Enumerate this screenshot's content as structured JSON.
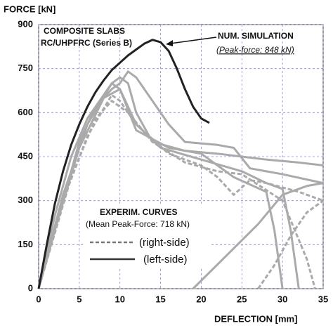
{
  "chart_data": {
    "type": "line",
    "y_label": "FORCE [kN]",
    "x_label": "DEFLECTION [mm]",
    "xlim": [
      0,
      35
    ],
    "xticks": [
      0,
      5,
      10,
      15,
      20,
      25,
      30,
      35
    ],
    "ylim": [
      0,
      900
    ],
    "yticks": [
      0,
      150,
      300,
      450,
      600,
      750,
      900
    ],
    "grid": true,
    "annotations": [
      "COMPOSITE SLABS",
      "RC/UHPFRC (Series B)",
      "NUM. SIMULATION",
      "(Peak-force: 848 kN)",
      "EXPERIM. CURVES",
      "(Mean Peak-Force: 718 kN)"
    ],
    "legend": [
      "(right-side)",
      "(left-side)"
    ],
    "series": [
      {
        "color": "#aaaaaa",
        "dashed": false,
        "x": [
          0,
          2,
          4,
          6,
          8,
          9,
          10,
          11,
          12,
          14,
          18,
          22,
          25,
          28,
          32,
          35
        ],
        "values": [
          0,
          250,
          450,
          580,
          660,
          700,
          720,
          700,
          600,
          500,
          470,
          460,
          450,
          440,
          430,
          420
        ]
      },
      {
        "color": "#aaaaaa",
        "dashed": false,
        "x": [
          0,
          3,
          5,
          7,
          9,
          10,
          11,
          12,
          14,
          16,
          18,
          22,
          24,
          26,
          30,
          35
        ],
        "values": [
          0,
          300,
          500,
          620,
          680,
          700,
          740,
          720,
          640,
          560,
          500,
          490,
          480,
          410,
          390,
          360
        ]
      },
      {
        "color": "#aaaaaa",
        "dashed": false,
        "x": [
          0,
          3,
          6,
          9,
          10,
          12,
          15,
          20,
          25,
          28,
          30,
          31,
          32
        ],
        "values": [
          0,
          320,
          560,
          700,
          680,
          560,
          480,
          440,
          400,
          360,
          340,
          200,
          0
        ]
      },
      {
        "color": "#aaaaaa",
        "dashed": false,
        "x": [
          0,
          2,
          5,
          8,
          10,
          12,
          16,
          20,
          24,
          28,
          29,
          30
        ],
        "values": [
          0,
          200,
          480,
          650,
          680,
          540,
          480,
          460,
          380,
          330,
          200,
          0
        ]
      },
      {
        "color": "#aaaaaa",
        "dashed": false,
        "x": [
          19,
          23,
          27,
          30,
          33,
          35
        ],
        "values": [
          0,
          110,
          220,
          320,
          350,
          360
        ]
      },
      {
        "color": "#aaaaaa",
        "dashed": true,
        "x": [
          0,
          3,
          6,
          9,
          10,
          12,
          16,
          20,
          22,
          24,
          26,
          28,
          32,
          35
        ],
        "values": [
          0,
          300,
          520,
          660,
          640,
          560,
          460,
          420,
          380,
          320,
          370,
          360,
          330,
          300
        ]
      },
      {
        "color": "#aaaaaa",
        "dashed": true,
        "x": [
          0,
          4,
          7,
          9,
          11,
          14,
          18,
          22,
          25,
          30,
          33,
          34
        ],
        "values": [
          0,
          380,
          580,
          640,
          600,
          500,
          430,
          400,
          390,
          300,
          100,
          0
        ]
      },
      {
        "color": "#aaaaaa",
        "dashed": true,
        "x": [
          27,
          29,
          31,
          33,
          35
        ],
        "values": [
          0,
          80,
          180,
          260,
          300
        ]
      },
      {
        "color": "#222222",
        "dashed": false,
        "x": [
          0,
          1,
          2,
          3,
          4,
          5,
          6,
          7,
          8,
          9,
          10,
          11,
          12,
          13,
          14,
          15,
          16,
          17,
          18,
          19,
          20,
          21
        ],
        "values": [
          0,
          150,
          290,
          400,
          490,
          560,
          620,
          670,
          710,
          745,
          770,
          795,
          815,
          835,
          848,
          840,
          810,
          750,
          680,
          620,
          580,
          565
        ]
      }
    ]
  }
}
